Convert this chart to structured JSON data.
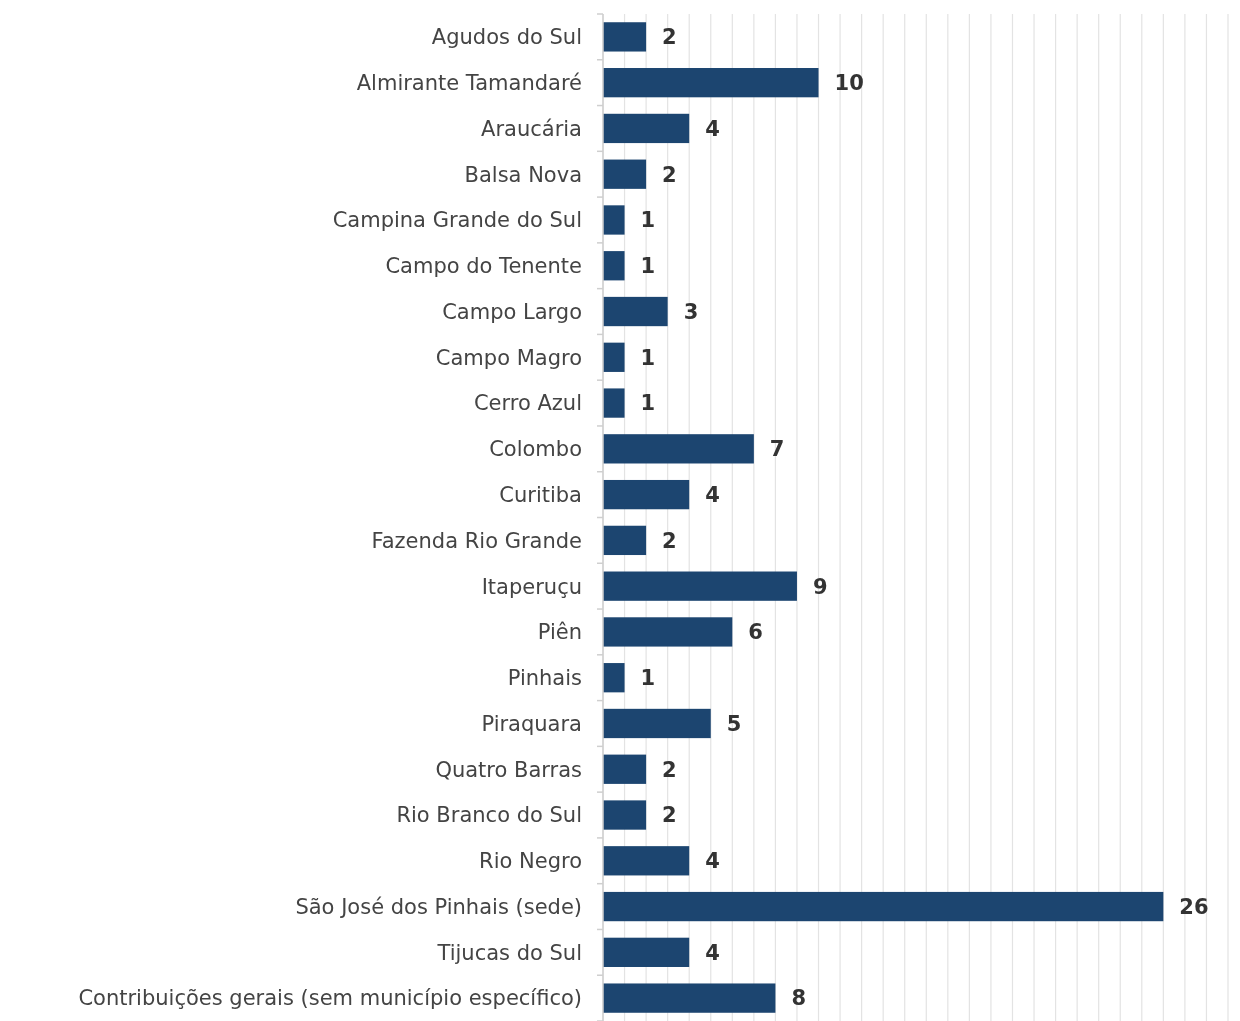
{
  "chart_data": {
    "type": "bar",
    "orientation": "horizontal",
    "categories": [
      "Agudos do Sul",
      "Almirante Tamandaré",
      "Araucária",
      "Balsa Nova",
      "Campina Grande do Sul",
      "Campo do Tenente",
      "Campo Largo",
      "Campo Magro",
      "Cerro Azul",
      "Colombo",
      "Curitiba",
      "Fazenda Rio Grande",
      "Itaperuçu",
      "Piên",
      "Pinhais",
      "Piraquara",
      "Quatro Barras",
      "Rio Branco do Sul",
      "Rio Negro",
      "São José dos Pinhais (sede)",
      "Tijucas do Sul",
      "Contribuições gerais (sem município específico)"
    ],
    "values": [
      2,
      10,
      4,
      2,
      1,
      1,
      3,
      1,
      1,
      7,
      4,
      2,
      9,
      6,
      1,
      5,
      2,
      2,
      4,
      26,
      4,
      8
    ],
    "color": "#1c4570",
    "data_labels": true,
    "grid": "x",
    "tick_labels": "y",
    "xlim": [
      0,
      29
    ],
    "xticks": [
      {
        "value": 0,
        "label": null
      },
      {
        "value": 1,
        "label": null
      },
      {
        "value": 2,
        "label": null
      },
      {
        "value": 3,
        "label": null
      },
      {
        "value": 4,
        "label": null
      },
      {
        "value": 5,
        "label": null
      },
      {
        "value": 6,
        "label": null
      },
      {
        "value": 7,
        "label": null
      },
      {
        "value": 8,
        "label": null
      },
      {
        "value": 9,
        "label": null
      },
      {
        "value": 10,
        "label": null
      },
      {
        "value": 11,
        "label": null
      },
      {
        "value": 12,
        "label": null
      },
      {
        "value": 13,
        "label": null
      },
      {
        "value": 14,
        "label": null
      },
      {
        "value": 15,
        "label": null
      },
      {
        "value": 16,
        "label": null
      },
      {
        "value": 17,
        "label": null
      },
      {
        "value": 18,
        "label": null
      },
      {
        "value": 19,
        "label": null
      },
      {
        "value": 20,
        "label": null
      },
      {
        "value": 21,
        "label": null
      },
      {
        "value": 22,
        "label": null
      },
      {
        "value": 23,
        "label": null
      },
      {
        "value": 24,
        "label": null
      },
      {
        "value": 25,
        "label": null
      },
      {
        "value": 26,
        "label": null
      },
      {
        "value": 27,
        "label": null
      },
      {
        "value": 28,
        "label": null
      },
      {
        "value": 29,
        "label": null
      }
    ]
  }
}
